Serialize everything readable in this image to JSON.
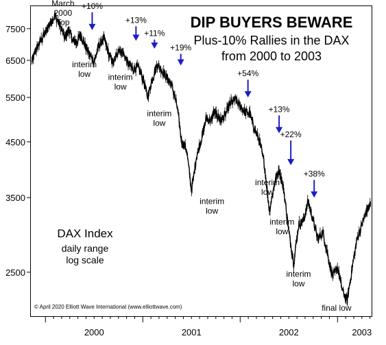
{
  "chart_data": {
    "type": "line",
    "title": "DIP BUYERS BEWARE",
    "subtitle_line1": "Plus-10% Rallies in the DAX",
    "subtitle_line2": "from 2000 to 2003",
    "index_name": "DAX Index",
    "index_note1": "daily range",
    "index_note2": "log scale",
    "copyright": "© April 2020 Elliott Wave International (www.elliottwave.com)",
    "y_scale": "log",
    "ylim": [
      2050,
      8300
    ],
    "xlim": [
      1999.85,
      2003.35
    ],
    "y_ticks": [
      {
        "value": 7500,
        "label": "7500"
      },
      {
        "value": 6500,
        "label": "6500"
      },
      {
        "value": 5500,
        "label": "5500"
      },
      {
        "value": 4500,
        "label": "4500"
      },
      {
        "value": 3500,
        "label": "3500"
      },
      {
        "value": 2500,
        "label": "2500"
      }
    ],
    "x_year_labels": [
      {
        "x": 2000.5,
        "label": "2000"
      },
      {
        "x": 2001.5,
        "label": "2001"
      },
      {
        "x": 2002.5,
        "label": "2002"
      },
      {
        "x": 2003.25,
        "label": "2003"
      }
    ],
    "year_separators": [
      2000.0,
      2001.0,
      2002.0,
      2003.0
    ],
    "series": [
      {
        "x": [
          1999.86,
          1999.9,
          1999.95,
          2000.0,
          2000.05,
          2000.1,
          2000.15,
          2000.2,
          2000.24,
          2000.28,
          2000.32,
          2000.36,
          2000.4,
          2000.45,
          2000.5,
          2000.55,
          2000.6,
          2000.65,
          2000.7,
          2000.75,
          2000.8,
          2000.85,
          2000.9,
          2000.95,
          2001.0,
          2001.05,
          2001.1,
          2001.15,
          2001.2,
          2001.25,
          2001.3,
          2001.35,
          2001.4,
          2001.45,
          2001.5,
          2001.55,
          2001.6,
          2001.65,
          2001.7,
          2001.73,
          2001.77,
          2001.8,
          2001.85,
          2001.9,
          2001.95,
          2002.0,
          2002.05,
          2002.1,
          2002.15,
          2002.2,
          2002.25,
          2002.3,
          2002.35,
          2002.4,
          2002.45,
          2002.5,
          2002.55,
          2002.6,
          2002.65,
          2002.7,
          2002.75,
          2002.8,
          2002.85,
          2002.9,
          2002.95,
          2003.0,
          2003.05,
          2003.1,
          2003.15,
          2003.2,
          2003.25,
          2003.3,
          2003.34
        ],
        "values": [
          6450,
          6800,
          7100,
          7350,
          7700,
          7950,
          7600,
          7200,
          7500,
          7100,
          7050,
          7300,
          7000,
          6700,
          6450,
          6950,
          7200,
          6700,
          6400,
          6850,
          6700,
          6400,
          6250,
          6300,
          6000,
          5500,
          6000,
          6400,
          6200,
          6000,
          5800,
          5300,
          4500,
          4350,
          3600,
          4200,
          4550,
          5000,
          4950,
          5150,
          5050,
          4950,
          5100,
          5350,
          5450,
          5300,
          5150,
          5100,
          4750,
          4500,
          4050,
          3300,
          3700,
          4000,
          3600,
          3000,
          2600,
          3100,
          3150,
          3450,
          3150,
          2900,
          3000,
          2700,
          2450,
          2550,
          2300,
          2200,
          2550,
          2900,
          3100,
          3300,
          3400
        ]
      }
    ],
    "annotations": [
      {
        "text": "March",
        "x": 2000.18,
        "y": 8300
      },
      {
        "text": "2000",
        "x": 2000.18,
        "y": 7950
      },
      {
        "text": "Top",
        "x": 2000.18,
        "y": 7620
      },
      {
        "text": "+10%",
        "x": 2000.48,
        "y": 8200,
        "arrow_y": 7450
      },
      {
        "text": "+13%",
        "x": 2000.93,
        "y": 7700,
        "arrow_y": 7100
      },
      {
        "text": "+11%",
        "x": 2001.12,
        "y": 7250,
        "arrow_y": 6850
      },
      {
        "text": "+19%",
        "x": 2001.39,
        "y": 6800,
        "arrow_y": 6350
      },
      {
        "text": "+54%",
        "x": 2002.08,
        "y": 6050,
        "arrow_y": 5500
      },
      {
        "text": "+13%",
        "x": 2002.4,
        "y": 5150,
        "arrow_y": 4680
      },
      {
        "text": "+22%",
        "x": 2002.52,
        "y": 4600,
        "arrow_y": 4050
      },
      {
        "text": "+38%",
        "x": 2002.76,
        "y": 3850,
        "arrow_y": 3500
      },
      {
        "text": "interim low",
        "x": 2000.4,
        "y": 6300
      },
      {
        "text": "interim low",
        "x": 2000.77,
        "y": 5950
      },
      {
        "text": "interim low",
        "x": 2001.17,
        "y": 5050
      },
      {
        "text": "interim low",
        "x": 2001.71,
        "y": 3400
      },
      {
        "text": "interim low",
        "x": 2002.28,
        "y": 3700
      },
      {
        "text": "interim low",
        "x": 2002.43,
        "y": 3100
      },
      {
        "text": "interim low",
        "x": 2002.6,
        "y": 2450
      },
      {
        "text": "final low",
        "x": 2002.99,
        "y": 2100
      }
    ]
  }
}
